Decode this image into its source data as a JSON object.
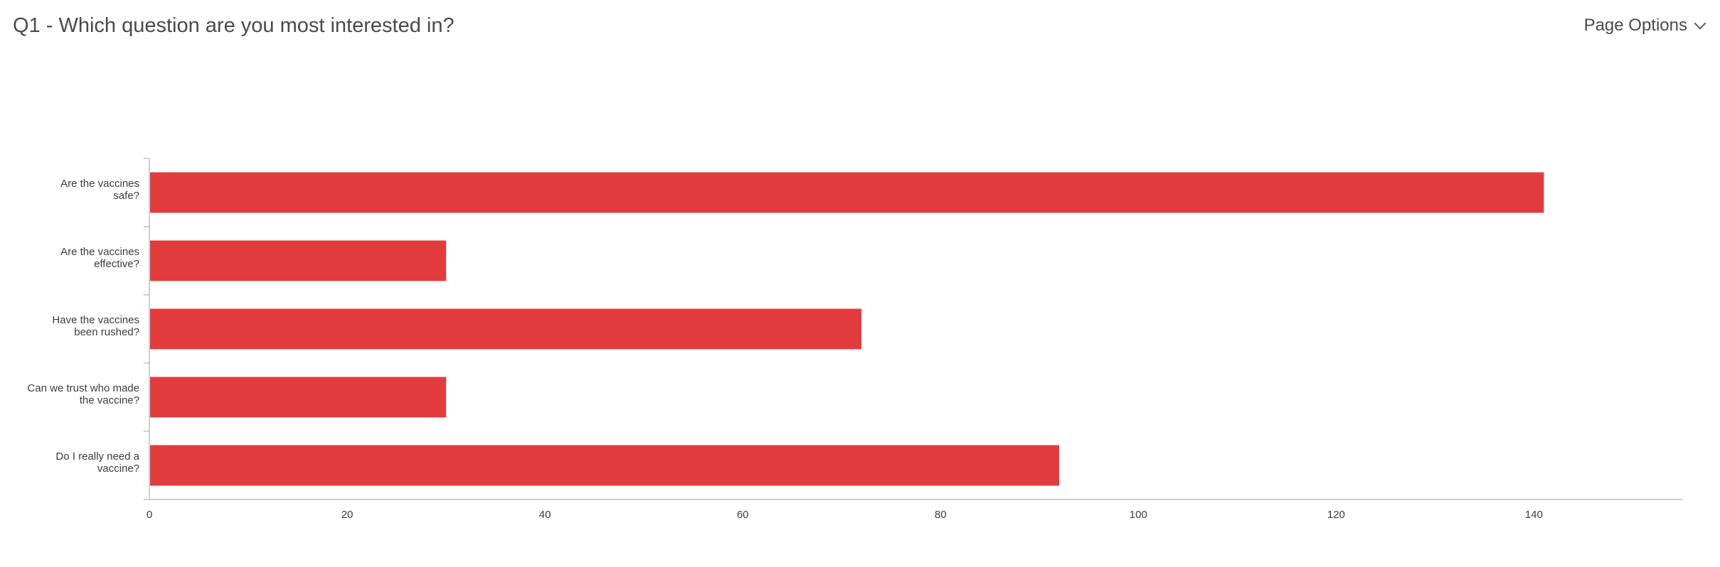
{
  "header": {
    "title": "Q1 - Which question are you most interested in?",
    "page_options_label": "Page Options"
  },
  "colors": {
    "bar": "#e23b3c",
    "axis": "#cfcfcf"
  },
  "chart_data": {
    "type": "bar",
    "orientation": "horizontal",
    "categories": [
      [
        "Are the vaccines",
        "safe?"
      ],
      [
        "Are the vaccines",
        "effective?"
      ],
      [
        "Have the vaccines",
        "been rushed?"
      ],
      [
        "Can we trust who made",
        "the vaccine?"
      ],
      [
        "Do I really need a",
        "vaccine?"
      ]
    ],
    "values": [
      141,
      30,
      72,
      30,
      92
    ],
    "xlim": [
      0,
      155
    ],
    "xticks": [
      0,
      20,
      40,
      60,
      80,
      100,
      120,
      140
    ],
    "grid": false,
    "legend": "none"
  }
}
